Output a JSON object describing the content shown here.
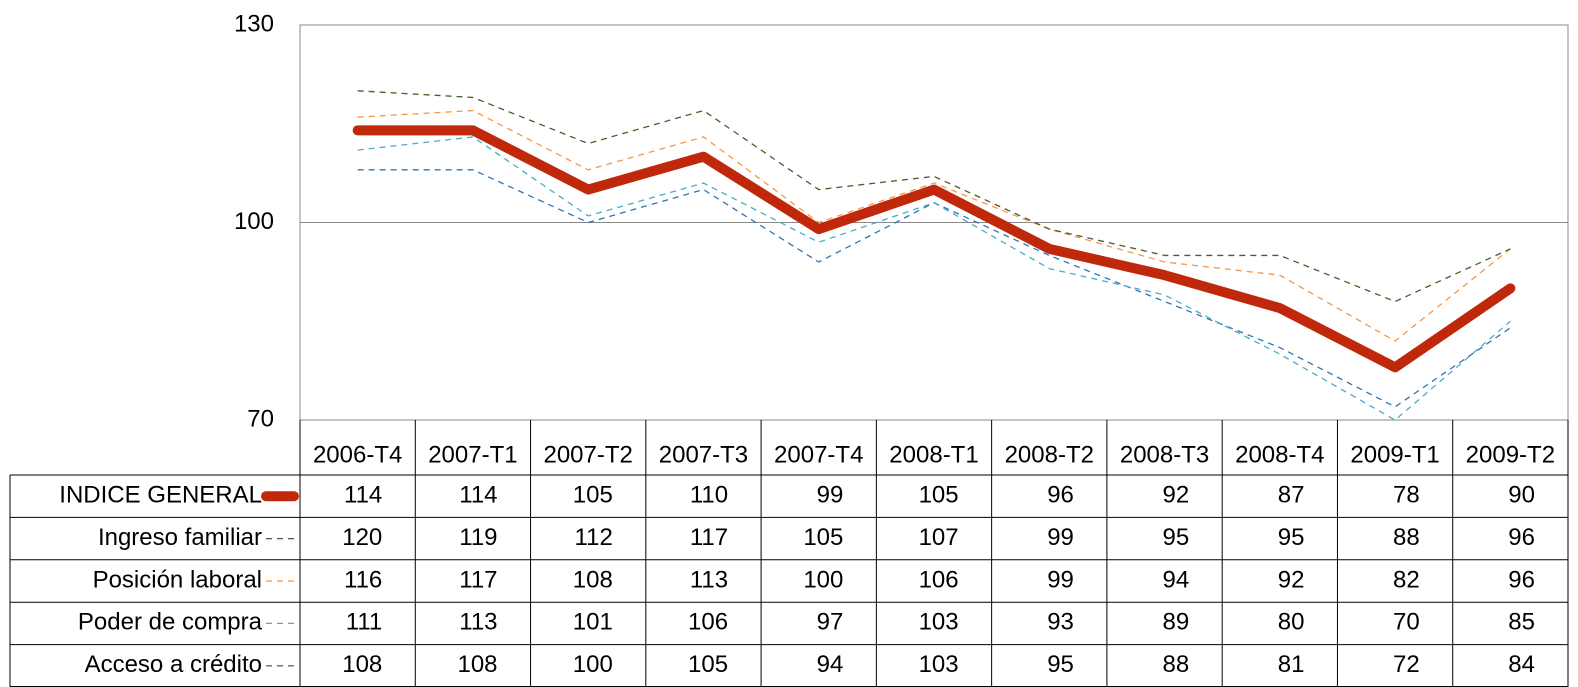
{
  "chart_data": {
    "type": "line",
    "categories": [
      "2006-T4",
      "2007-T1",
      "2007-T2",
      "2007-T3",
      "2007-T4",
      "2008-T1",
      "2008-T2",
      "2008-T3",
      "2008-T4",
      "2009-T1",
      "2009-T2"
    ],
    "series": [
      {
        "name": "INDICE GENERAL",
        "color": "#c0280c",
        "values": [
          114,
          114,
          105,
          110,
          99,
          105,
          96,
          92,
          87,
          78,
          90
        ]
      },
      {
        "name": "Ingreso familiar",
        "color": "#4f5b2a",
        "values": [
          120,
          119,
          112,
          117,
          105,
          107,
          99,
          95,
          95,
          88,
          96
        ]
      },
      {
        "name": "Posición laboral",
        "color": "#f79646",
        "values": [
          116,
          117,
          108,
          113,
          100,
          106,
          99,
          94,
          92,
          82,
          96
        ]
      },
      {
        "name": "Poder de compra",
        "color": "#4bacc6",
        "values": [
          111,
          113,
          101,
          106,
          97,
          103,
          93,
          89,
          80,
          70,
          85
        ]
      },
      {
        "name": "Acceso a crédito",
        "color": "#2e75b6",
        "values": [
          108,
          108,
          100,
          105,
          94,
          103,
          95,
          88,
          81,
          72,
          84
        ]
      }
    ],
    "ylim": [
      70,
      130
    ],
    "yticks": [
      70,
      100,
      130
    ],
    "grid": true
  }
}
